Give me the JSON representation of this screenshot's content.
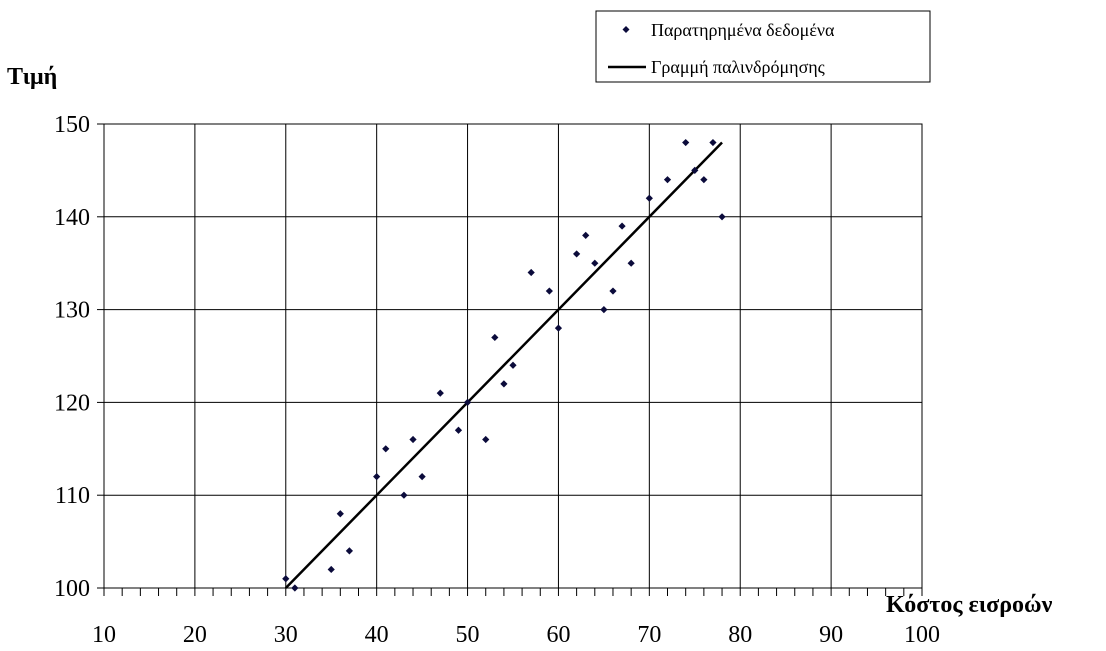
{
  "chart_data": {
    "type": "scatter",
    "xlabel": "Κόστος εισροών",
    "ylabel": "Τιμή",
    "xlim": [
      10,
      100
    ],
    "ylim": [
      100,
      150
    ],
    "x_ticks": [
      10,
      20,
      30,
      40,
      50,
      60,
      70,
      80,
      90,
      100
    ],
    "y_ticks": [
      100,
      110,
      120,
      130,
      140,
      150
    ],
    "grid": true,
    "legend_position": "top-right",
    "series": [
      {
        "name": "Παρατηρημένα δεδομένα",
        "kind": "scatter",
        "marker": "diamond",
        "color": "#0b0b3b",
        "points": [
          [
            30,
            101
          ],
          [
            31,
            100
          ],
          [
            35,
            102
          ],
          [
            36,
            108
          ],
          [
            37,
            104
          ],
          [
            40,
            112
          ],
          [
            41,
            115
          ],
          [
            43,
            110
          ],
          [
            44,
            116
          ],
          [
            45,
            112
          ],
          [
            47,
            121
          ],
          [
            49,
            117
          ],
          [
            50,
            120
          ],
          [
            52,
            116
          ],
          [
            53,
            127
          ],
          [
            54,
            122
          ],
          [
            55,
            124
          ],
          [
            57,
            134
          ],
          [
            59,
            132
          ],
          [
            60,
            128
          ],
          [
            62,
            136
          ],
          [
            63,
            138
          ],
          [
            64,
            135
          ],
          [
            65,
            130
          ],
          [
            66,
            132
          ],
          [
            67,
            139
          ],
          [
            68,
            135
          ],
          [
            70,
            142
          ],
          [
            72,
            144
          ],
          [
            74,
            148
          ],
          [
            75,
            145
          ],
          [
            76,
            144
          ],
          [
            77,
            148
          ],
          [
            78,
            140
          ]
        ]
      },
      {
        "name": "Γραμμή παλινδρόμησης",
        "kind": "line",
        "color": "#000000",
        "points": [
          [
            30,
            100
          ],
          [
            78,
            148
          ]
        ]
      }
    ]
  }
}
